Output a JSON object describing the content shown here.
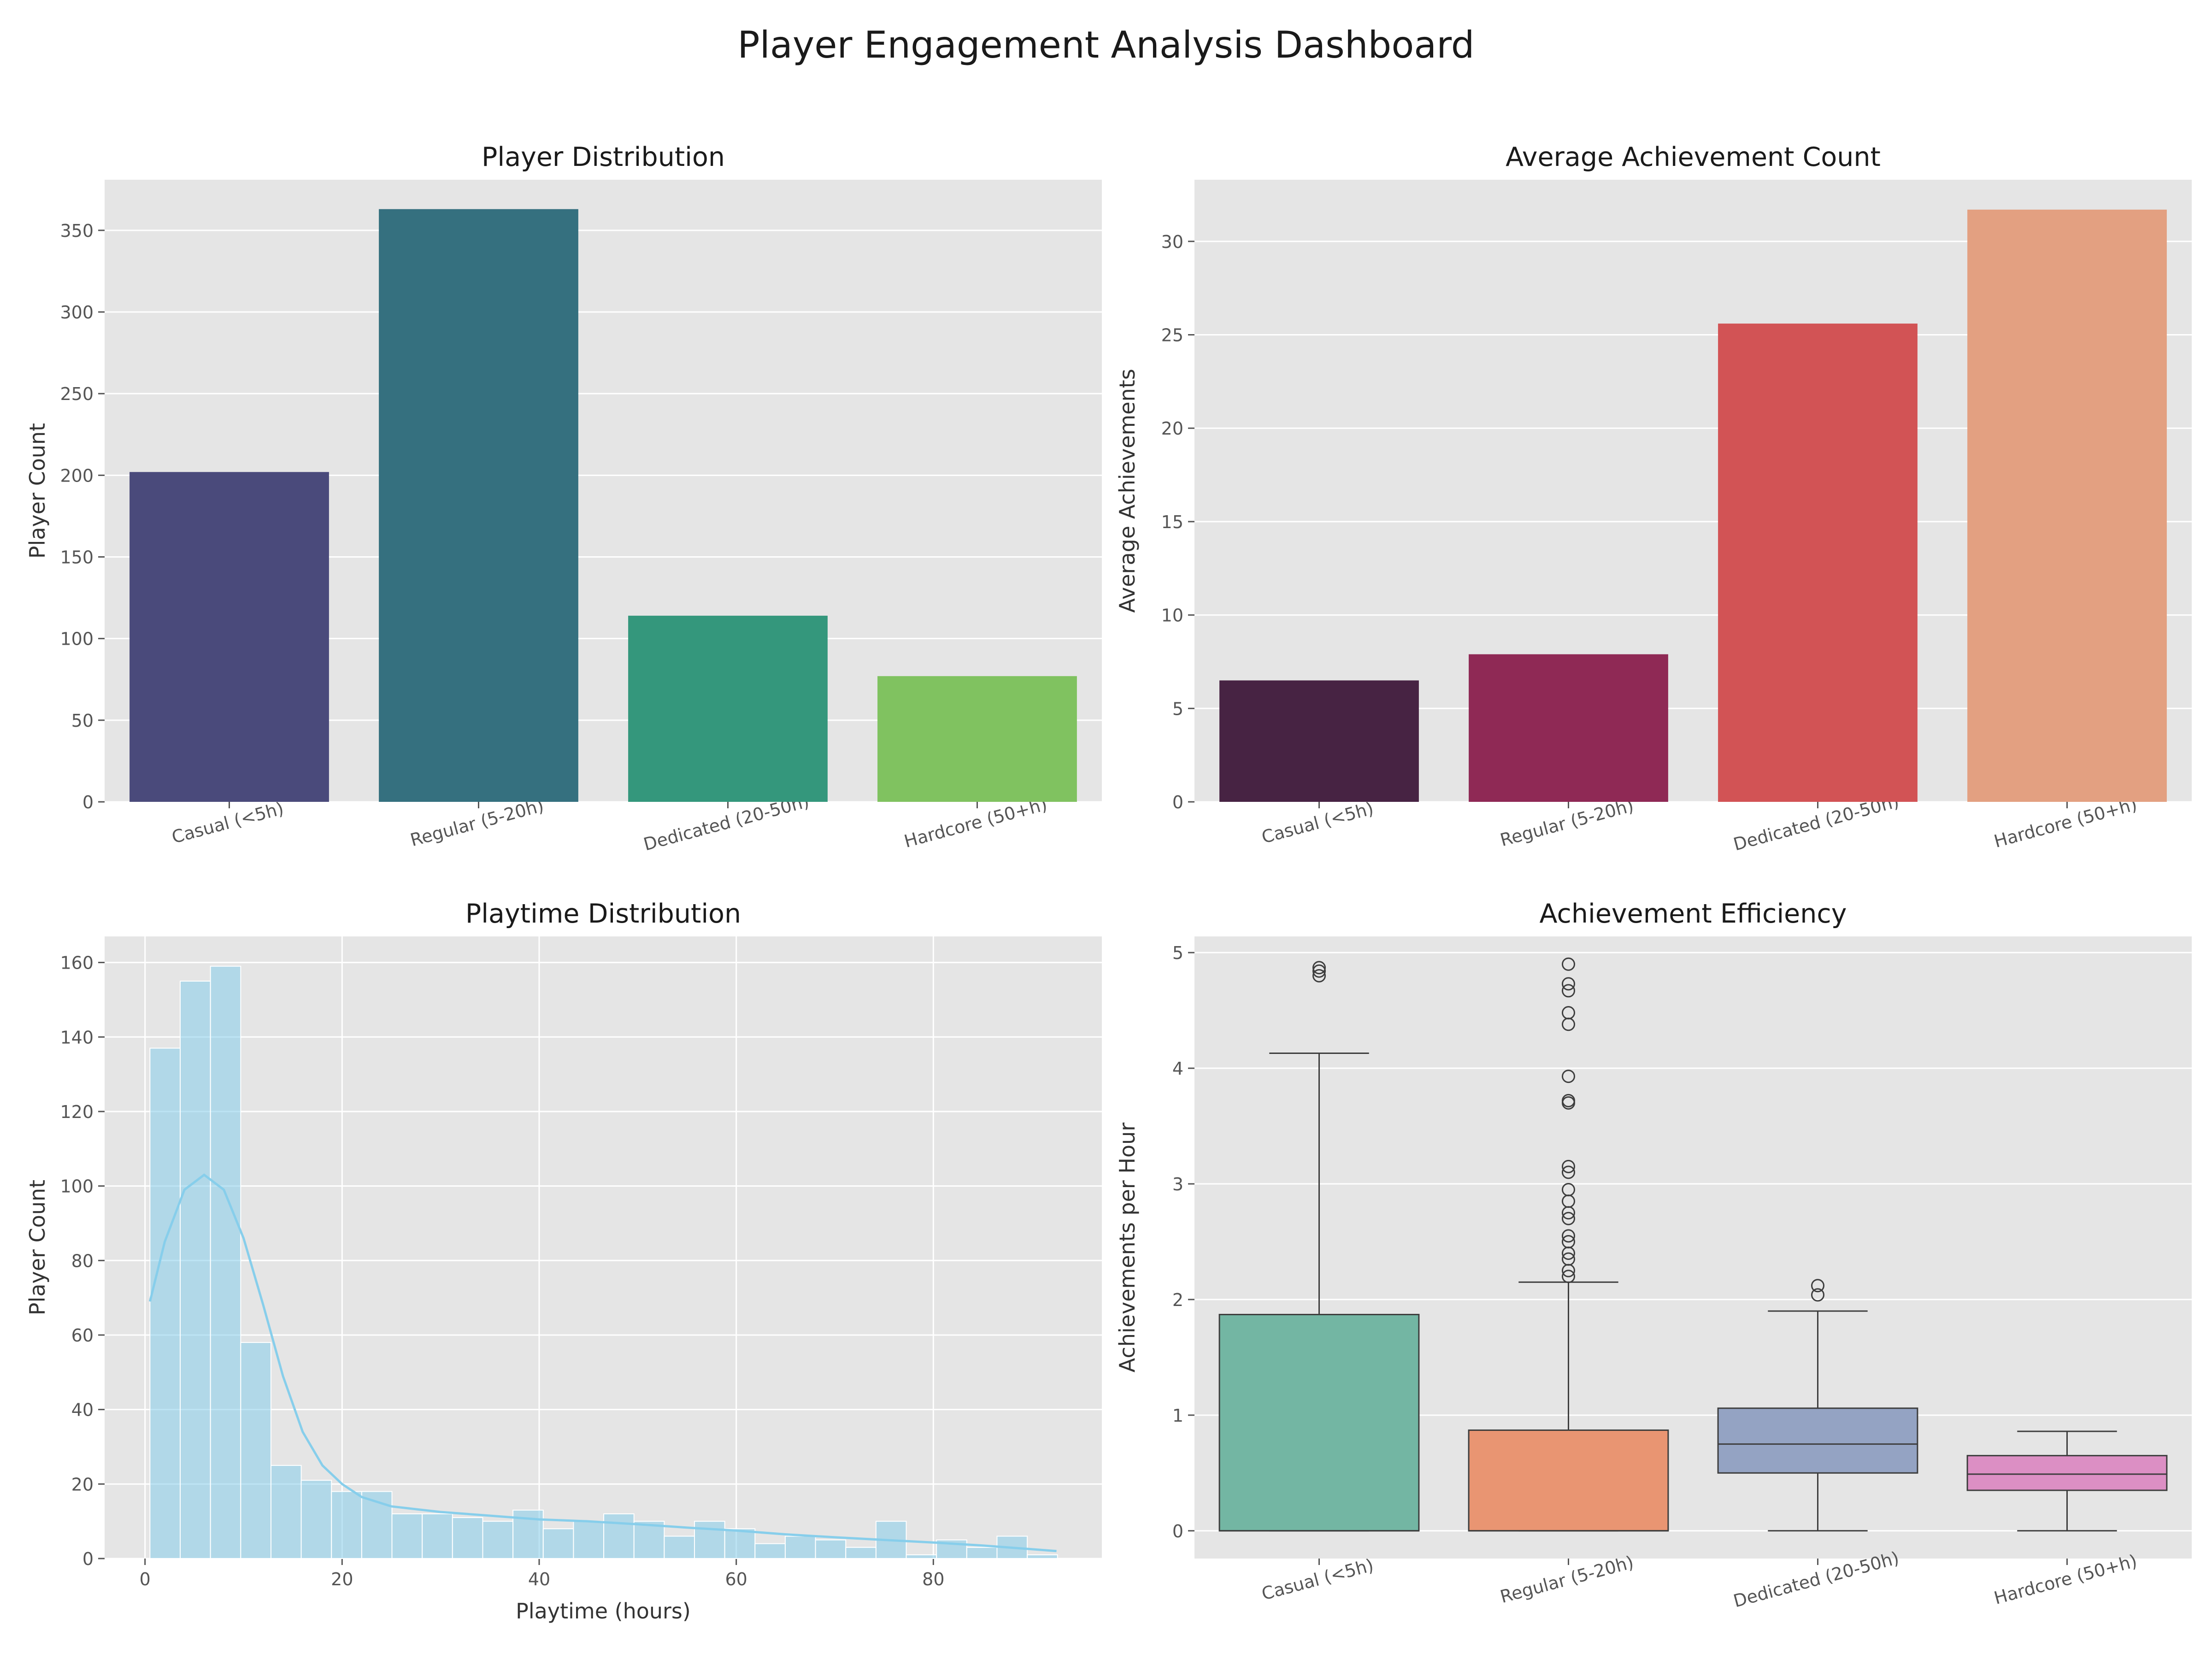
{
  "page_title": "Player Engagement Analysis Dashboard",
  "colors": {
    "panel_bg": "#e5e5e5",
    "grid": "#ffffff",
    "axis_text": "#555555",
    "label_text": "#333333",
    "title_text": "#1a1a1a",
    "hist_fill": "#87ceeb",
    "hist_line": "#87ceeb",
    "box_edge": "#3d3d3d"
  },
  "chart_data": [
    {
      "id": "dist",
      "type": "bar",
      "title": "Player Distribution",
      "xlabel": "",
      "ylabel": "Player Count",
      "categories": [
        "Casual (<5h)",
        "Regular (5-20h)",
        "Dedicated (20-50h)",
        "Hardcore (50+h)"
      ],
      "values": [
        202,
        363,
        114,
        77
      ],
      "colors": [
        "#4a4a7b",
        "#35707f",
        "#34977c",
        "#80c260"
      ],
      "ylim": [
        0,
        381
      ],
      "yticks": [
        0,
        50,
        100,
        150,
        200,
        250,
        300,
        350
      ],
      "grid": true
    },
    {
      "id": "ach",
      "type": "bar",
      "title": "Average Achievement Count",
      "xlabel": "",
      "ylabel": "Average Achievements",
      "categories": [
        "Casual (<5h)",
        "Regular (5-20h)",
        "Dedicated (20-50h)",
        "Hardcore (50+h)"
      ],
      "values": [
        6.5,
        7.9,
        25.6,
        31.7
      ],
      "colors": [
        "#472343",
        "#8f2955",
        "#d25355",
        "#e3a081"
      ],
      "ylim": [
        0,
        33.3
      ],
      "yticks": [
        0,
        5,
        10,
        15,
        20,
        25,
        30
      ],
      "grid": true
    },
    {
      "id": "play",
      "type": "histogram",
      "title": "Playtime Distribution",
      "xlabel": "Playtime (hours)",
      "ylabel": "Player Count",
      "bin_start": 0.5,
      "bin_width": 3.07,
      "counts": [
        137,
        155,
        159,
        58,
        25,
        21,
        18,
        18,
        12,
        12,
        11,
        10,
        13,
        8,
        10,
        12,
        10,
        6,
        10,
        8,
        4,
        6,
        5,
        3,
        10,
        1,
        5,
        3,
        6,
        1
      ],
      "kde": [
        [
          0.5,
          69
        ],
        [
          2,
          85
        ],
        [
          4,
          99
        ],
        [
          6,
          103
        ],
        [
          8,
          99
        ],
        [
          10,
          86
        ],
        [
          12,
          68
        ],
        [
          14,
          49
        ],
        [
          16,
          34
        ],
        [
          18,
          25
        ],
        [
          20,
          20
        ],
        [
          22,
          16.5
        ],
        [
          25,
          14
        ],
        [
          30,
          12.5
        ],
        [
          35,
          11.5
        ],
        [
          40,
          10.5
        ],
        [
          45,
          10
        ],
        [
          50,
          9.2
        ],
        [
          55,
          8.3
        ],
        [
          60,
          7.5
        ],
        [
          65,
          6.5
        ],
        [
          70,
          5.7
        ],
        [
          75,
          5
        ],
        [
          80,
          4.3
        ],
        [
          85,
          3.5
        ],
        [
          90,
          2.5
        ],
        [
          92.5,
          2
        ]
      ],
      "xlim": [
        -4.1,
        97.1
      ],
      "ylim": [
        0,
        167
      ],
      "xticks": [
        0,
        20,
        40,
        60,
        80
      ],
      "yticks": [
        0,
        20,
        40,
        60,
        80,
        100,
        120,
        140,
        160
      ],
      "grid": true
    },
    {
      "id": "eff",
      "type": "box",
      "title": "Achievement Efficiency",
      "xlabel": "",
      "ylabel": "Achievements per Hour",
      "categories": [
        "Casual (<5h)",
        "Regular (5-20h)",
        "Dedicated (20-50h)",
        "Hardcore (50+h)"
      ],
      "colors": [
        "#73b6a3",
        "#e99572",
        "#94a3c3",
        "#dc8fc4"
      ],
      "boxes": [
        {
          "whislo": 0,
          "q1": 0,
          "med": 0,
          "q3": 1.87,
          "whishi": 4.13,
          "fliers": [
            4.8,
            4.84,
            4.87
          ]
        },
        {
          "whislo": 0,
          "q1": 0,
          "med": 0,
          "q3": 0.87,
          "whishi": 2.15,
          "fliers": [
            2.2,
            2.25,
            2.35,
            2.4,
            2.5,
            2.55,
            2.7,
            2.75,
            2.85,
            2.95,
            3.1,
            3.15,
            3.7,
            3.72,
            3.93,
            4.38,
            4.48,
            4.67,
            4.73,
            4.9
          ]
        },
        {
          "whislo": 0,
          "q1": 0.5,
          "med": 0.75,
          "q3": 1.06,
          "whishi": 1.9,
          "fliers": [
            2.04,
            2.12
          ]
        },
        {
          "whislo": 0,
          "q1": 0.35,
          "med": 0.49,
          "q3": 0.65,
          "whishi": 0.86,
          "fliers": []
        }
      ],
      "ylim": [
        -0.24,
        5.14
      ],
      "yticks": [
        0,
        1,
        2,
        3,
        4,
        5
      ],
      "grid": true
    }
  ]
}
